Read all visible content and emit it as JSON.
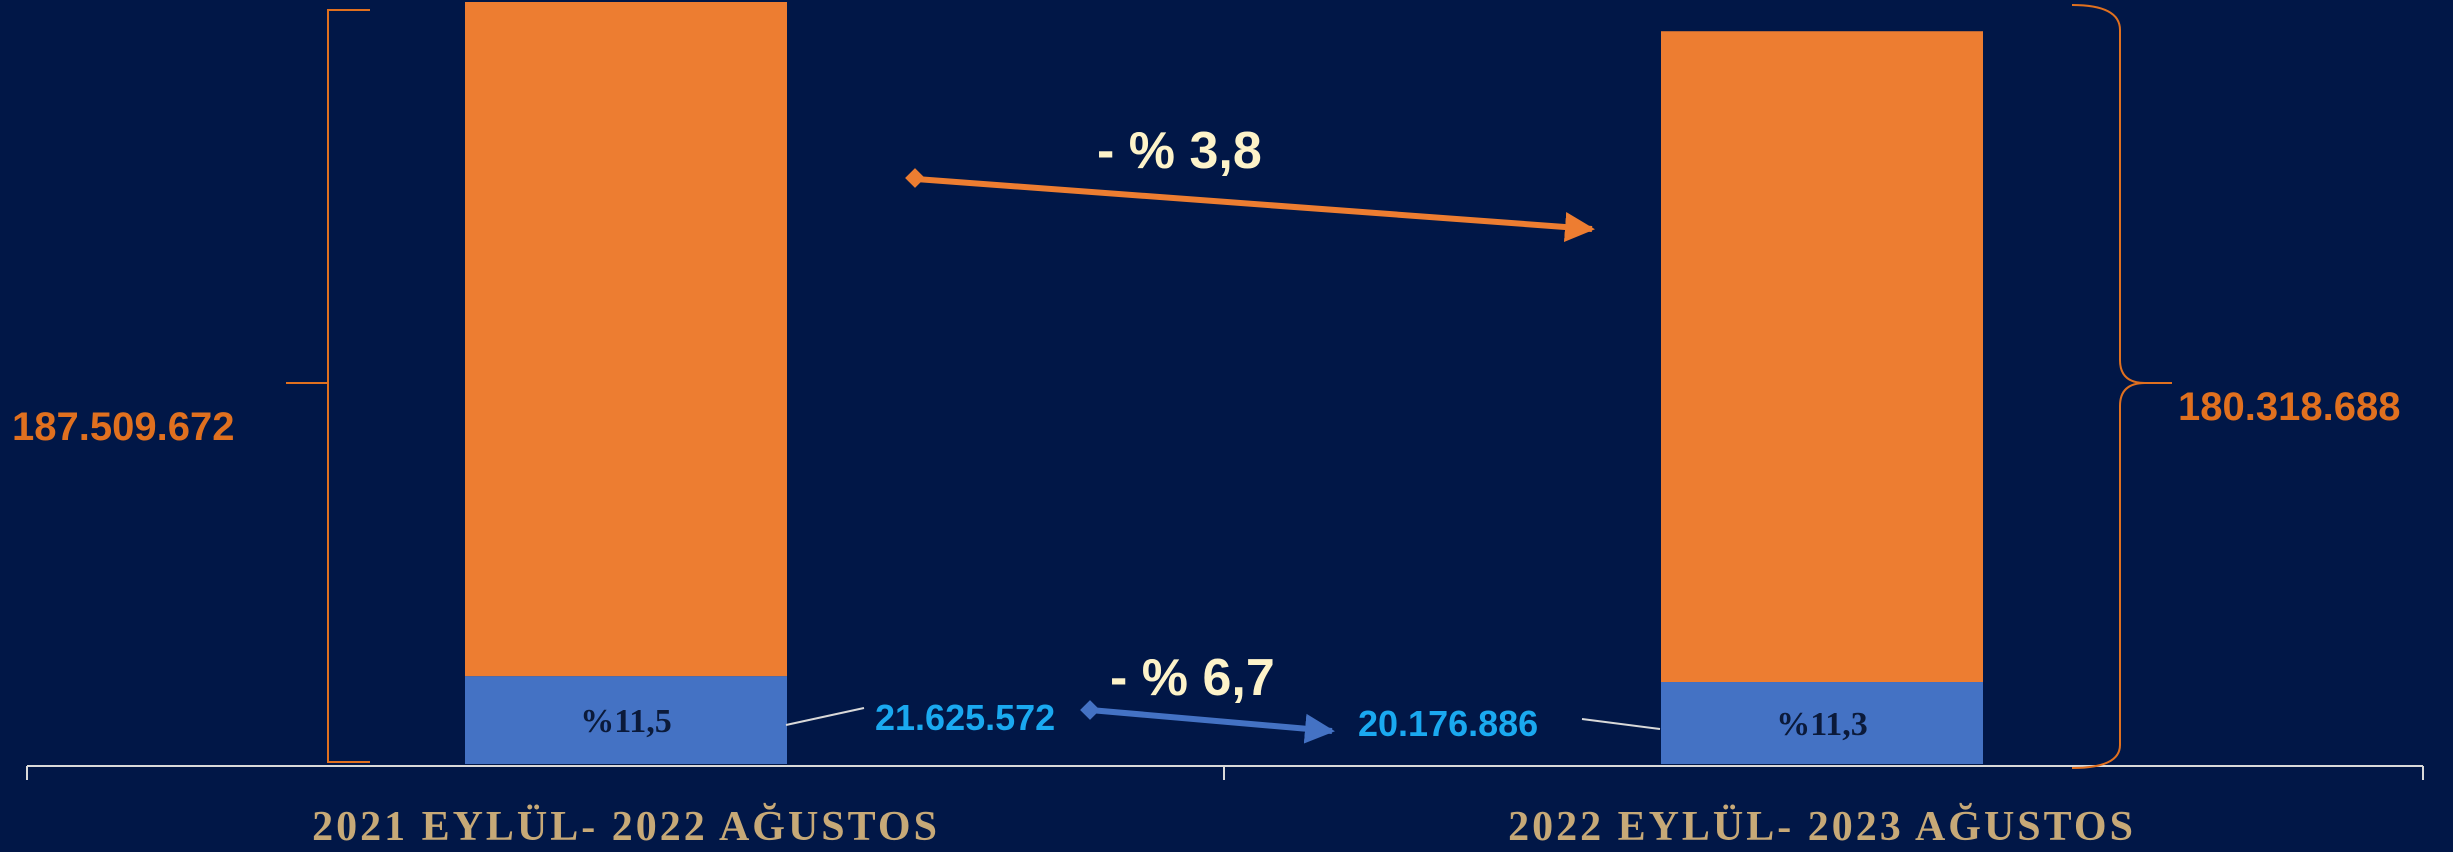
{
  "colors": {
    "background": "#011747",
    "total": "#ed7d31",
    "segment": "#4472c4",
    "total_label": "#e0701f",
    "segment_label": "#1aa9f0",
    "change_text": "#fdf3c9",
    "category_text": "#c7a977",
    "axis": "#d9d9d9"
  },
  "chart_data": {
    "type": "bar",
    "stacked": true,
    "categories": [
      "2021 EYLÜL- 2022 AĞUSTOS",
      "2022 EYLÜL- 2023 AĞUSTOS"
    ],
    "series": [
      {
        "values": [
          21625572,
          20176886
        ]
      },
      {
        "values": [
          165884100,
          160141802
        ]
      }
    ],
    "totals": [
      187509672,
      180318688
    ],
    "labels": {
      "totals": [
        "187.509.672",
        "180.318.688"
      ],
      "segment_values": [
        "21.625.572",
        "20.176.886"
      ],
      "segment_shares": [
        "%11,5",
        "%11,3"
      ]
    },
    "changes": {
      "total": "- % 3,8",
      "segment": "- % 6,7"
    },
    "ylim": [
      0,
      187509672
    ],
    "title": "",
    "xlabel": "",
    "ylabel": ""
  }
}
